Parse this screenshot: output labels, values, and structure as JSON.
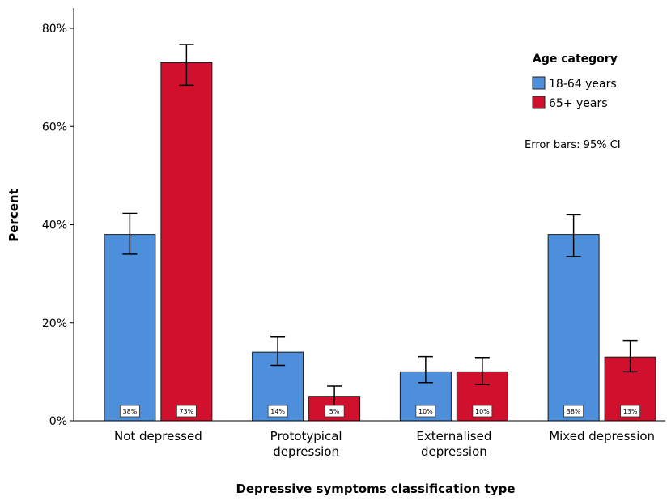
{
  "chart_data": {
    "type": "bar",
    "xlabel": "Depressive symptoms classification type",
    "ylabel": "Percent",
    "ylim": [
      0,
      80
    ],
    "yticks": [
      "0%",
      "20%",
      "40%",
      "60%",
      "80%"
    ],
    "categories": [
      [
        "Not depressed"
      ],
      [
        "Prototypical",
        "depression"
      ],
      [
        "Externalised",
        "depression"
      ],
      [
        "Mixed depression"
      ]
    ],
    "legend": {
      "title": "Age category",
      "position": "top-right"
    },
    "note": "Error bars: 95% CI",
    "series": [
      {
        "name": "18-64 years",
        "color": "#4e8fdc",
        "values": [
          38,
          14,
          10,
          38
        ],
        "ci_low": [
          34,
          11.3,
          7.8,
          33.5
        ],
        "ci_high": [
          42.3,
          17.2,
          13.1,
          42
        ],
        "labels": [
          "38%",
          "14%",
          "10%",
          "38%"
        ]
      },
      {
        "name": "65+ years",
        "color": "#d0102d",
        "values": [
          73,
          5,
          10,
          13
        ],
        "ci_low": [
          68.4,
          2.6,
          7.4,
          10
        ],
        "ci_high": [
          76.7,
          7.1,
          12.9,
          16.4
        ],
        "labels": [
          "73%",
          "5%",
          "10%",
          "13%"
        ]
      }
    ]
  }
}
